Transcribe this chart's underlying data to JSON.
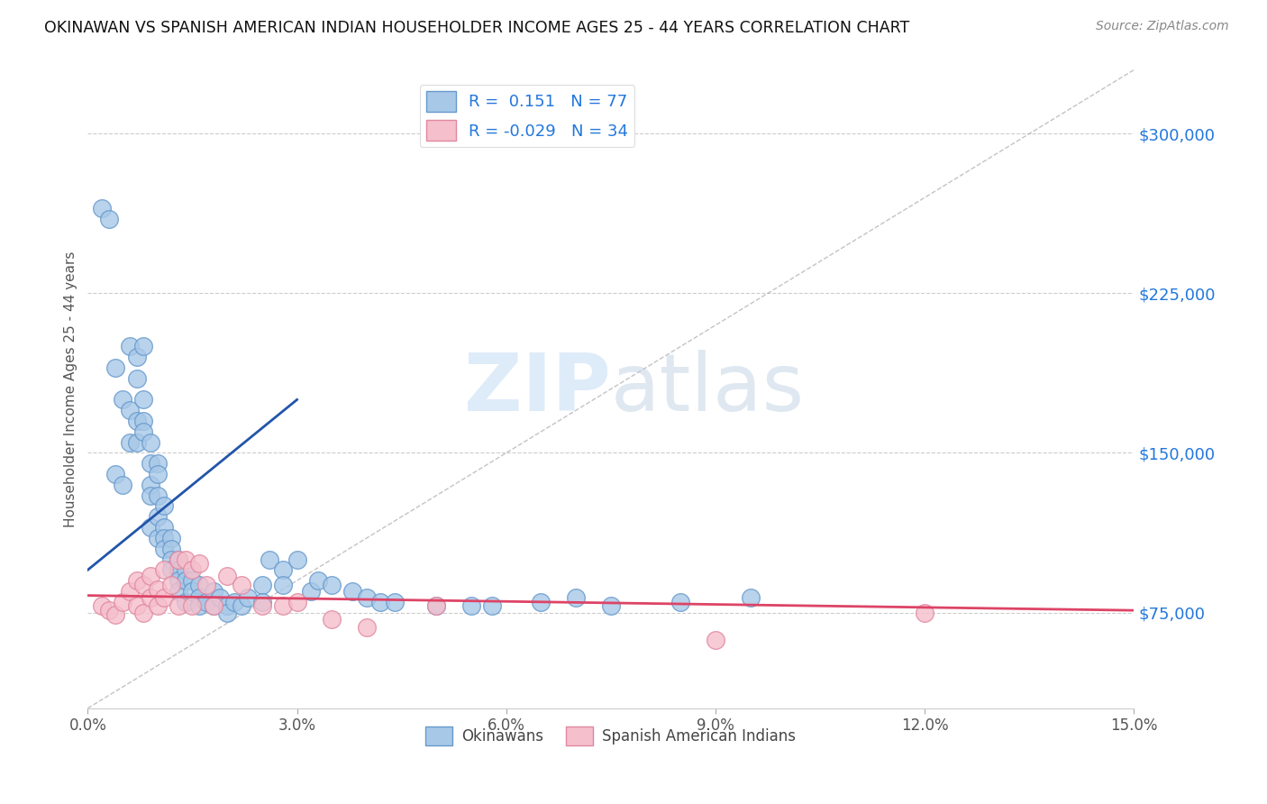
{
  "title": "OKINAWAN VS SPANISH AMERICAN INDIAN HOUSEHOLDER INCOME AGES 25 - 44 YEARS CORRELATION CHART",
  "source": "Source: ZipAtlas.com",
  "ylabel": "Householder Income Ages 25 - 44 years",
  "xlim": [
    0.0,
    0.15
  ],
  "ylim": [
    30000,
    330000
  ],
  "xticks": [
    0.0,
    0.03,
    0.06,
    0.09,
    0.12,
    0.15
  ],
  "xtick_labels": [
    "0.0%",
    "3.0%",
    "6.0%",
    "9.0%",
    "12.0%",
    "15.0%"
  ],
  "yticks": [
    75000,
    150000,
    225000,
    300000
  ],
  "ytick_labels": [
    "$75,000",
    "$150,000",
    "$225,000",
    "$300,000"
  ],
  "okinawan_color": "#a8c8e8",
  "okinawan_edge": "#6699cc",
  "spanish_color": "#f5bfcc",
  "spanish_edge": "#e088a0",
  "blue_line_color": "#2255aa",
  "pink_line_color": "#dd4466",
  "diag_line_color": "#aaaaaa",
  "R_okinawan": 0.151,
  "N_okinawan": 77,
  "R_spanish": -0.029,
  "N_spanish": 34,
  "legend_label_1": "Okinawans",
  "legend_label_2": "Spanish American Indians",
  "watermark_zip": "ZIP",
  "watermark_atlas": "atlas",
  "title_color": "#111111",
  "axis_label_color": "#555555",
  "tick_color_y": "#2277dd",
  "background_color": "#ffffff",
  "blue_line_x": [
    0.0,
    0.03
  ],
  "blue_line_y": [
    95000,
    175000
  ],
  "pink_line_x": [
    0.0,
    0.15
  ],
  "pink_line_y": [
    83000,
    76000
  ],
  "okinawan_x": [
    0.002,
    0.003,
    0.004,
    0.004,
    0.005,
    0.005,
    0.006,
    0.006,
    0.006,
    0.007,
    0.007,
    0.007,
    0.007,
    0.008,
    0.008,
    0.008,
    0.008,
    0.009,
    0.009,
    0.009,
    0.009,
    0.009,
    0.01,
    0.01,
    0.01,
    0.01,
    0.01,
    0.011,
    0.011,
    0.011,
    0.011,
    0.012,
    0.012,
    0.012,
    0.012,
    0.013,
    0.013,
    0.013,
    0.013,
    0.014,
    0.014,
    0.014,
    0.015,
    0.015,
    0.016,
    0.016,
    0.016,
    0.017,
    0.018,
    0.018,
    0.019,
    0.02,
    0.02,
    0.021,
    0.022,
    0.023,
    0.025,
    0.025,
    0.026,
    0.028,
    0.028,
    0.03,
    0.032,
    0.033,
    0.035,
    0.038,
    0.04,
    0.042,
    0.044,
    0.05,
    0.055,
    0.058,
    0.065,
    0.07,
    0.075,
    0.085,
    0.095
  ],
  "okinawan_y": [
    265000,
    260000,
    140000,
    190000,
    135000,
    175000,
    200000,
    155000,
    170000,
    185000,
    195000,
    165000,
    155000,
    200000,
    175000,
    165000,
    160000,
    155000,
    145000,
    135000,
    130000,
    115000,
    145000,
    140000,
    130000,
    120000,
    110000,
    125000,
    115000,
    110000,
    105000,
    110000,
    105000,
    100000,
    95000,
    100000,
    95000,
    90000,
    85000,
    95000,
    90000,
    80000,
    90000,
    85000,
    88000,
    82000,
    78000,
    80000,
    85000,
    78000,
    82000,
    78000,
    75000,
    80000,
    78000,
    82000,
    88000,
    80000,
    100000,
    95000,
    88000,
    100000,
    85000,
    90000,
    88000,
    85000,
    82000,
    80000,
    80000,
    78000,
    78000,
    78000,
    80000,
    82000,
    78000,
    80000,
    82000
  ],
  "spanish_x": [
    0.002,
    0.003,
    0.004,
    0.005,
    0.006,
    0.007,
    0.007,
    0.008,
    0.008,
    0.009,
    0.009,
    0.01,
    0.01,
    0.011,
    0.011,
    0.012,
    0.013,
    0.013,
    0.014,
    0.015,
    0.015,
    0.016,
    0.017,
    0.018,
    0.02,
    0.022,
    0.025,
    0.028,
    0.03,
    0.035,
    0.04,
    0.05,
    0.09,
    0.12
  ],
  "spanish_y": [
    78000,
    76000,
    74000,
    80000,
    85000,
    90000,
    78000,
    88000,
    75000,
    92000,
    82000,
    86000,
    78000,
    95000,
    82000,
    88000,
    100000,
    78000,
    100000,
    95000,
    78000,
    98000,
    88000,
    78000,
    92000,
    88000,
    78000,
    78000,
    80000,
    72000,
    68000,
    78000,
    62000,
    75000
  ]
}
